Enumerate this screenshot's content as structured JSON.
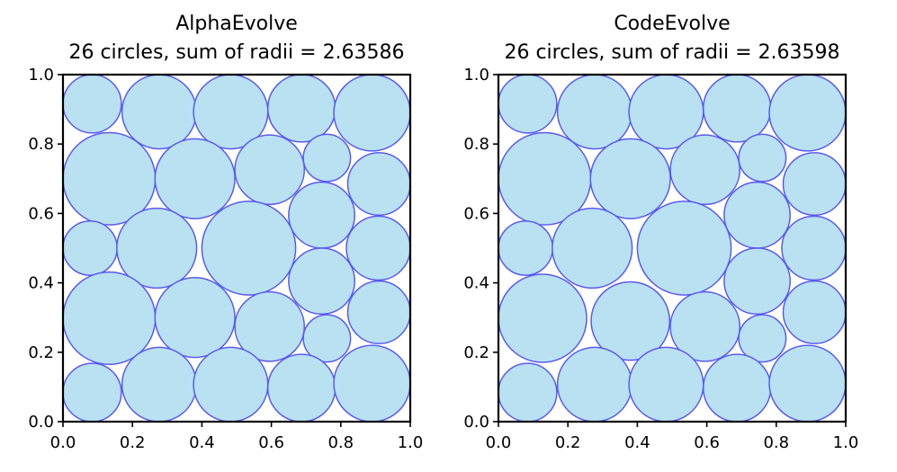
{
  "chart_data": [
    {
      "type": "scatter",
      "title": "AlphaEvolve",
      "subtitle": "26 circles, sum of radii = 2.63586",
      "xlim": [
        0.0,
        1.0
      ],
      "ylim": [
        0.0,
        1.0
      ],
      "x_ticks": [
        "0.0",
        "0.2",
        "0.4",
        "0.6",
        "0.8",
        "1.0"
      ],
      "y_ticks": [
        "0.0",
        "0.2",
        "0.4",
        "0.6",
        "0.8",
        "1.0"
      ],
      "grid": false,
      "circles": [
        {
          "x": 0.084,
          "y": 0.916,
          "r": 0.084
        },
        {
          "x": 0.277,
          "y": 0.893,
          "r": 0.107
        },
        {
          "x": 0.483,
          "y": 0.893,
          "r": 0.107
        },
        {
          "x": 0.687,
          "y": 0.903,
          "r": 0.097
        },
        {
          "x": 0.89,
          "y": 0.89,
          "r": 0.11
        },
        {
          "x": 0.133,
          "y": 0.7,
          "r": 0.133
        },
        {
          "x": 0.38,
          "y": 0.7,
          "r": 0.115
        },
        {
          "x": 0.595,
          "y": 0.726,
          "r": 0.1
        },
        {
          "x": 0.76,
          "y": 0.76,
          "r": 0.068
        },
        {
          "x": 0.91,
          "y": 0.685,
          "r": 0.09
        },
        {
          "x": 0.078,
          "y": 0.5,
          "r": 0.078
        },
        {
          "x": 0.27,
          "y": 0.5,
          "r": 0.115
        },
        {
          "x": 0.535,
          "y": 0.5,
          "r": 0.135
        },
        {
          "x": 0.745,
          "y": 0.595,
          "r": 0.095
        },
        {
          "x": 0.908,
          "y": 0.5,
          "r": 0.092
        },
        {
          "x": 0.133,
          "y": 0.298,
          "r": 0.133
        },
        {
          "x": 0.38,
          "y": 0.3,
          "r": 0.115
        },
        {
          "x": 0.595,
          "y": 0.274,
          "r": 0.1
        },
        {
          "x": 0.745,
          "y": 0.405,
          "r": 0.095
        },
        {
          "x": 0.76,
          "y": 0.24,
          "r": 0.068
        },
        {
          "x": 0.91,
          "y": 0.315,
          "r": 0.09
        },
        {
          "x": 0.084,
          "y": 0.084,
          "r": 0.084
        },
        {
          "x": 0.277,
          "y": 0.107,
          "r": 0.107
        },
        {
          "x": 0.483,
          "y": 0.107,
          "r": 0.107
        },
        {
          "x": 0.687,
          "y": 0.097,
          "r": 0.097
        },
        {
          "x": 0.89,
          "y": 0.11,
          "r": 0.11
        }
      ]
    },
    {
      "type": "scatter",
      "title": "CodeEvolve",
      "subtitle": "26 circles, sum of radii = 2.63598",
      "xlim": [
        0.0,
        1.0
      ],
      "ylim": [
        0.0,
        1.0
      ],
      "x_ticks": [
        "0.0",
        "0.2",
        "0.4",
        "0.6",
        "0.8",
        "1.0"
      ],
      "y_ticks": [
        "0.0",
        "0.2",
        "0.4",
        "0.6",
        "0.8",
        "1.0"
      ],
      "grid": false,
      "circles": [
        {
          "x": 0.084,
          "y": 0.916,
          "r": 0.084
        },
        {
          "x": 0.277,
          "y": 0.893,
          "r": 0.107
        },
        {
          "x": 0.483,
          "y": 0.893,
          "r": 0.107
        },
        {
          "x": 0.687,
          "y": 0.903,
          "r": 0.097
        },
        {
          "x": 0.89,
          "y": 0.89,
          "r": 0.11
        },
        {
          "x": 0.133,
          "y": 0.7,
          "r": 0.133
        },
        {
          "x": 0.38,
          "y": 0.7,
          "r": 0.115
        },
        {
          "x": 0.595,
          "y": 0.726,
          "r": 0.1
        },
        {
          "x": 0.76,
          "y": 0.76,
          "r": 0.068
        },
        {
          "x": 0.91,
          "y": 0.685,
          "r": 0.09
        },
        {
          "x": 0.078,
          "y": 0.5,
          "r": 0.078
        },
        {
          "x": 0.27,
          "y": 0.5,
          "r": 0.115
        },
        {
          "x": 0.535,
          "y": 0.5,
          "r": 0.135
        },
        {
          "x": 0.745,
          "y": 0.595,
          "r": 0.095
        },
        {
          "x": 0.908,
          "y": 0.5,
          "r": 0.092
        },
        {
          "x": 0.127,
          "y": 0.298,
          "r": 0.127
        },
        {
          "x": 0.38,
          "y": 0.29,
          "r": 0.113
        },
        {
          "x": 0.595,
          "y": 0.274,
          "r": 0.1
        },
        {
          "x": 0.745,
          "y": 0.405,
          "r": 0.095
        },
        {
          "x": 0.76,
          "y": 0.24,
          "r": 0.068
        },
        {
          "x": 0.91,
          "y": 0.315,
          "r": 0.09
        },
        {
          "x": 0.084,
          "y": 0.084,
          "r": 0.084
        },
        {
          "x": 0.277,
          "y": 0.107,
          "r": 0.107
        },
        {
          "x": 0.483,
          "y": 0.107,
          "r": 0.107
        },
        {
          "x": 0.687,
          "y": 0.097,
          "r": 0.097
        },
        {
          "x": 0.89,
          "y": 0.11,
          "r": 0.11
        }
      ]
    }
  ],
  "colors": {
    "circle_fill": "#b9e1f2",
    "circle_edge": "#5a5af0",
    "axes": "#000000"
  }
}
